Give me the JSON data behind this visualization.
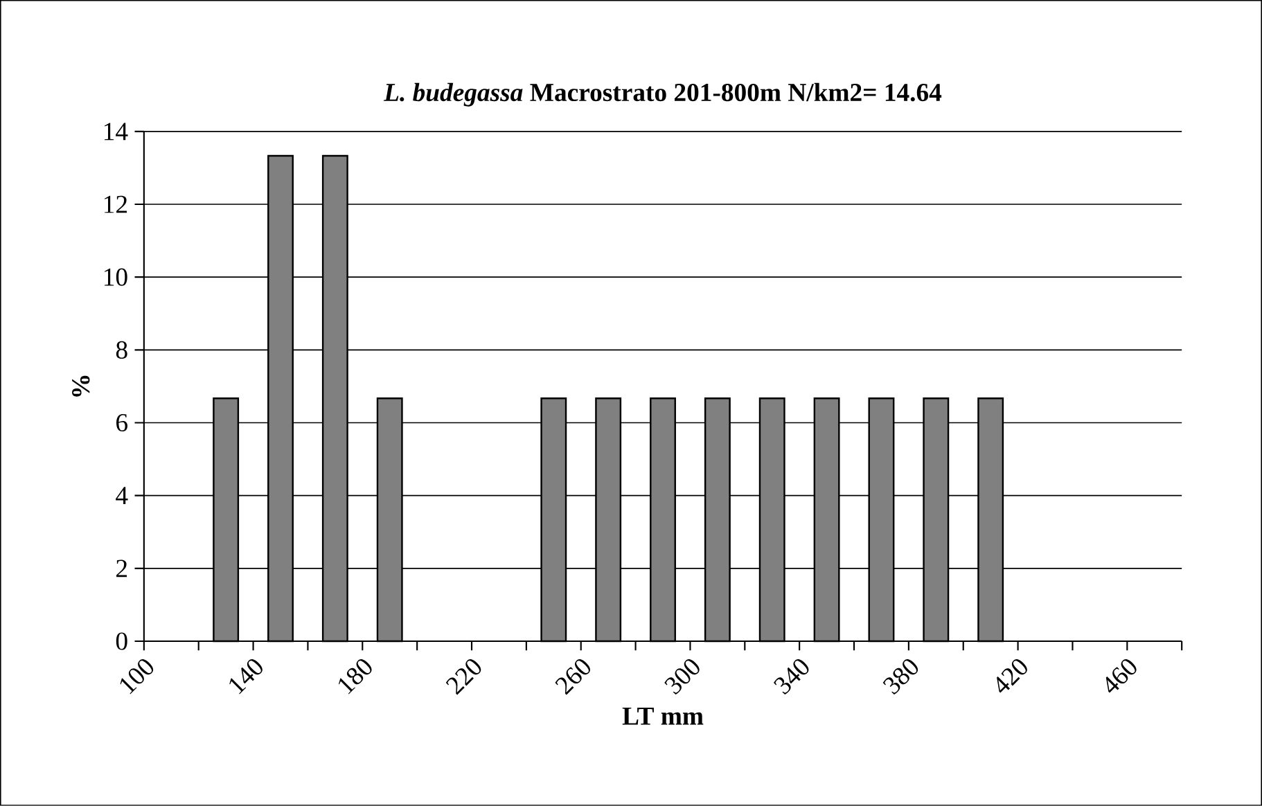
{
  "chart_data": {
    "type": "histogram",
    "title": "*L. budegassa* Macrostrato 201-800m N/km2= 14.64",
    "xlabel": "LT mm",
    "ylabel": "%",
    "bins": [
      100,
      120,
      140,
      160,
      180,
      200,
      220,
      240,
      260,
      280,
      300,
      320,
      340,
      360,
      380,
      400,
      420,
      440,
      460,
      480
    ],
    "values": [
      0,
      6.67,
      13.33,
      13.33,
      6.67,
      0,
      0,
      6.67,
      6.67,
      6.67,
      6.67,
      6.67,
      6.67,
      6.67,
      6.67,
      6.67,
      0,
      0,
      0
    ],
    "color": "#808080",
    "xlim": [
      100,
      480
    ],
    "ylim": [
      0,
      14
    ],
    "xticks": [
      100,
      {
        "value": 120,
        "label": null
      },
      140,
      {
        "value": 160,
        "label": null
      },
      180,
      {
        "value": 200,
        "label": null
      },
      220,
      {
        "value": 240,
        "label": null
      },
      260,
      {
        "value": 280,
        "label": null
      },
      300,
      {
        "value": 320,
        "label": null
      },
      340,
      {
        "value": 360,
        "label": null
      },
      380,
      {
        "value": 400,
        "label": null
      },
      420,
      {
        "value": 440,
        "label": null
      },
      460,
      {
        "value": 480,
        "label": null
      }
    ],
    "yticks": [
      0,
      2,
      4,
      6,
      8,
      10,
      12,
      14
    ],
    "grid": "y"
  }
}
